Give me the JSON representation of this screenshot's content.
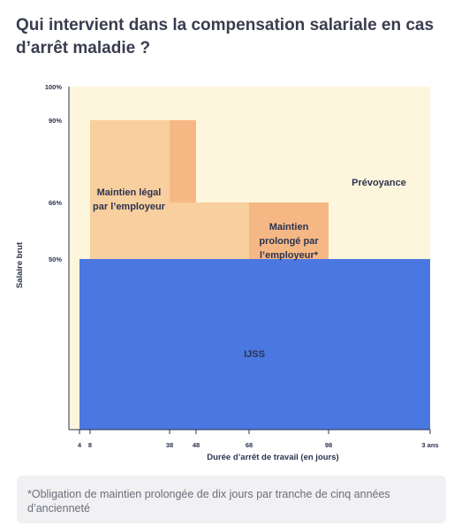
{
  "page": {
    "title": "Qui intervient dans la compensation salariale en cas d’arrêt maladie ?",
    "note": "*Obligation de maintien prolongée de dix jours par tranche de cinq années d’ancienneté"
  },
  "chart_data": {
    "type": "area",
    "title": "Qui intervient dans la compensation salariale en cas d’arrêt maladie ?",
    "xlabel": "Durée d’arrêt de travail (en jours)",
    "ylabel": "Salaire brut",
    "x_ticks": [
      "4",
      "8",
      "38",
      "48",
      "68",
      "98",
      "3 ans"
    ],
    "y_ticks": [
      "100%",
      "90%",
      "66%",
      "50%"
    ],
    "ylim": [
      0,
      100
    ],
    "series": [
      {
        "name": "IJSS",
        "x_start": "4",
        "x_end": "3 ans",
        "y_from": 0,
        "y_to": 50
      },
      {
        "name": "Maintien légal par l’employeur",
        "x_start": "8",
        "x_end": "38",
        "y_from": 50,
        "y_to": 90
      },
      {
        "name": "Maintien légal par l’employeur",
        "x_start": "38",
        "x_end": "68",
        "y_from": 50,
        "y_to": 66
      },
      {
        "name": "Maintien légal par l’employeur",
        "x_start": "38",
        "x_end": "48",
        "y_from": 66,
        "y_to": 90
      },
      {
        "name": "Maintien prolongé par l’employeur*",
        "x_start": "68",
        "x_end": "98",
        "y_from": 50,
        "y_to": 66
      },
      {
        "name": "Prévoyance",
        "x_start": "4",
        "x_end": "3 ans",
        "y_from": 50,
        "y_to": 100
      }
    ],
    "region_labels": {
      "ijss": "IJSS",
      "legal": [
        "Maintien légal",
        "par l’employeur"
      ],
      "prolonged": [
        "Maintien",
        "prolongé par",
        "l’employeur*"
      ],
      "prevoyance": "Prévoyance"
    },
    "colors": {
      "ijss": "#4a77e0",
      "legal": "#f8cf9e",
      "legal_extension": "#f5b885",
      "prolonged": "#f5b885",
      "prevoyance": "#fef6dc"
    }
  }
}
